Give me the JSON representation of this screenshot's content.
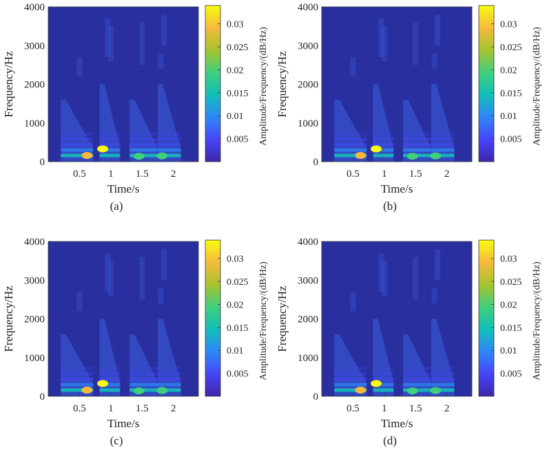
{
  "colors": {
    "background": "#2a2fa0",
    "colormap": [
      "#3e26a8",
      "#4745f8",
      "#2e87f7",
      "#13beb8",
      "#40cf7d",
      "#a6c32f",
      "#f5ba3d",
      "#f9fb0e"
    ]
  },
  "chart_data": [
    {
      "type": "heatmap",
      "panel_label": "(a)",
      "xlabel": "Time/s",
      "ylabel": "Frequency/Hz",
      "colorbar_label": "Amplitude/Frequency/(dB/Hz)",
      "xticks": [
        0.5,
        1,
        1.5,
        2
      ],
      "xtick_labels": [
        "0.5",
        "1",
        "1.5",
        "2"
      ],
      "yticks": [
        0,
        1000,
        2000,
        3000,
        4000
      ],
      "ytick_labels": [
        "0",
        "1000",
        "2000",
        "3000",
        "4000"
      ],
      "xlim": [
        0.0,
        2.4
      ],
      "ylim": [
        0,
        4000
      ],
      "clim": [
        0,
        0.034
      ],
      "cticks": [
        0.005,
        0.01,
        0.015,
        0.02,
        0.025,
        0.03
      ],
      "ctick_labels": [
        "0.005",
        "0.01",
        "0.015",
        "0.02",
        "0.025",
        "0.03"
      ],
      "segments": [
        {
          "t_start": 0.2,
          "t_end": 0.72,
          "peak": 0.031,
          "peak_time": 0.62,
          "peak_freq": 160
        },
        {
          "t_start": 0.82,
          "t_end": 1.15,
          "peak": 0.034,
          "peak_time": 0.87,
          "peak_freq": 330
        },
        {
          "t_start": 1.3,
          "t_end": 1.75,
          "peak": 0.018,
          "peak_time": 1.45,
          "peak_freq": 140
        },
        {
          "t_start": 1.75,
          "t_end": 2.12,
          "peak": 0.02,
          "peak_time": 1.82,
          "peak_freq": 150
        }
      ]
    },
    {
      "type": "heatmap",
      "panel_label": "(b)",
      "xlabel": "Time/s",
      "ylabel": "Frequency/Hz",
      "colorbar_label": "Amplitude/Frequency/(dB/Hz)",
      "xticks": [
        0.5,
        1,
        1.5,
        2
      ],
      "xtick_labels": [
        "0.5",
        "1",
        "1.5",
        "2"
      ],
      "yticks": [
        0,
        1000,
        2000,
        3000,
        4000
      ],
      "ytick_labels": [
        "0",
        "1000",
        "2000",
        "3000",
        "4000"
      ],
      "xlim": [
        0.0,
        2.4
      ],
      "ylim": [
        0,
        4000
      ],
      "clim": [
        0,
        0.034
      ],
      "cticks": [
        0.005,
        0.01,
        0.015,
        0.02,
        0.025,
        0.03
      ],
      "ctick_labels": [
        "0.005",
        "0.01",
        "0.015",
        "0.02",
        "0.025",
        "0.03"
      ],
      "segments": [
        {
          "t_start": 0.2,
          "t_end": 0.72,
          "peak": 0.03,
          "peak_time": 0.62,
          "peak_freq": 160
        },
        {
          "t_start": 0.82,
          "t_end": 1.15,
          "peak": 0.033,
          "peak_time": 0.87,
          "peak_freq": 330
        },
        {
          "t_start": 1.3,
          "t_end": 1.75,
          "peak": 0.018,
          "peak_time": 1.45,
          "peak_freq": 140
        },
        {
          "t_start": 1.75,
          "t_end": 2.12,
          "peak": 0.02,
          "peak_time": 1.82,
          "peak_freq": 150
        }
      ]
    },
    {
      "type": "heatmap",
      "panel_label": "(c)",
      "xlabel": "Time/s",
      "ylabel": "Frequency/Hz",
      "colorbar_label": "Amplitude/Frequency/(dB/Hz)",
      "xticks": [
        0.5,
        1,
        1.5,
        2
      ],
      "xtick_labels": [
        "0.5",
        "1",
        "1.5",
        "2"
      ],
      "yticks": [
        0,
        1000,
        2000,
        3000,
        4000
      ],
      "ytick_labels": [
        "0",
        "1000",
        "2000",
        "3000",
        "4000"
      ],
      "xlim": [
        0.0,
        2.4
      ],
      "ylim": [
        0,
        4000
      ],
      "clim": [
        0,
        0.034
      ],
      "cticks": [
        0.005,
        0.01,
        0.015,
        0.02,
        0.025,
        0.03
      ],
      "ctick_labels": [
        "0.005",
        "0.01",
        "0.015",
        "0.02",
        "0.025",
        "0.03"
      ],
      "segments": [
        {
          "t_start": 0.2,
          "t_end": 0.72,
          "peak": 0.031,
          "peak_time": 0.62,
          "peak_freq": 160
        },
        {
          "t_start": 0.82,
          "t_end": 1.15,
          "peak": 0.034,
          "peak_time": 0.87,
          "peak_freq": 330
        },
        {
          "t_start": 1.3,
          "t_end": 1.75,
          "peak": 0.018,
          "peak_time": 1.45,
          "peak_freq": 140
        },
        {
          "t_start": 1.75,
          "t_end": 2.12,
          "peak": 0.02,
          "peak_time": 1.82,
          "peak_freq": 150
        }
      ]
    },
    {
      "type": "heatmap",
      "panel_label": "(d)",
      "xlabel": "Time/s",
      "ylabel": "Frequency/Hz",
      "colorbar_label": "Amplitude/Frequency/(dB/Hz)",
      "xticks": [
        0.5,
        1,
        1.5,
        2
      ],
      "xtick_labels": [
        "0.5",
        "1",
        "1.5",
        "2"
      ],
      "yticks": [
        0,
        1000,
        2000,
        3000,
        4000
      ],
      "ytick_labels": [
        "0",
        "1000",
        "2000",
        "3000",
        "4000"
      ],
      "xlim": [
        0.0,
        2.4
      ],
      "ylim": [
        0,
        4000
      ],
      "clim": [
        0,
        0.034
      ],
      "cticks": [
        0.005,
        0.01,
        0.015,
        0.02,
        0.025,
        0.03
      ],
      "ctick_labels": [
        "0.005",
        "0.01",
        "0.015",
        "0.02",
        "0.025",
        "0.03"
      ],
      "segments": [
        {
          "t_start": 0.2,
          "t_end": 0.72,
          "peak": 0.03,
          "peak_time": 0.62,
          "peak_freq": 160
        },
        {
          "t_start": 0.82,
          "t_end": 1.15,
          "peak": 0.033,
          "peak_time": 0.87,
          "peak_freq": 330
        },
        {
          "t_start": 1.3,
          "t_end": 1.75,
          "peak": 0.018,
          "peak_time": 1.45,
          "peak_freq": 140
        },
        {
          "t_start": 1.75,
          "t_end": 2.12,
          "peak": 0.02,
          "peak_time": 1.82,
          "peak_freq": 150
        }
      ]
    }
  ]
}
